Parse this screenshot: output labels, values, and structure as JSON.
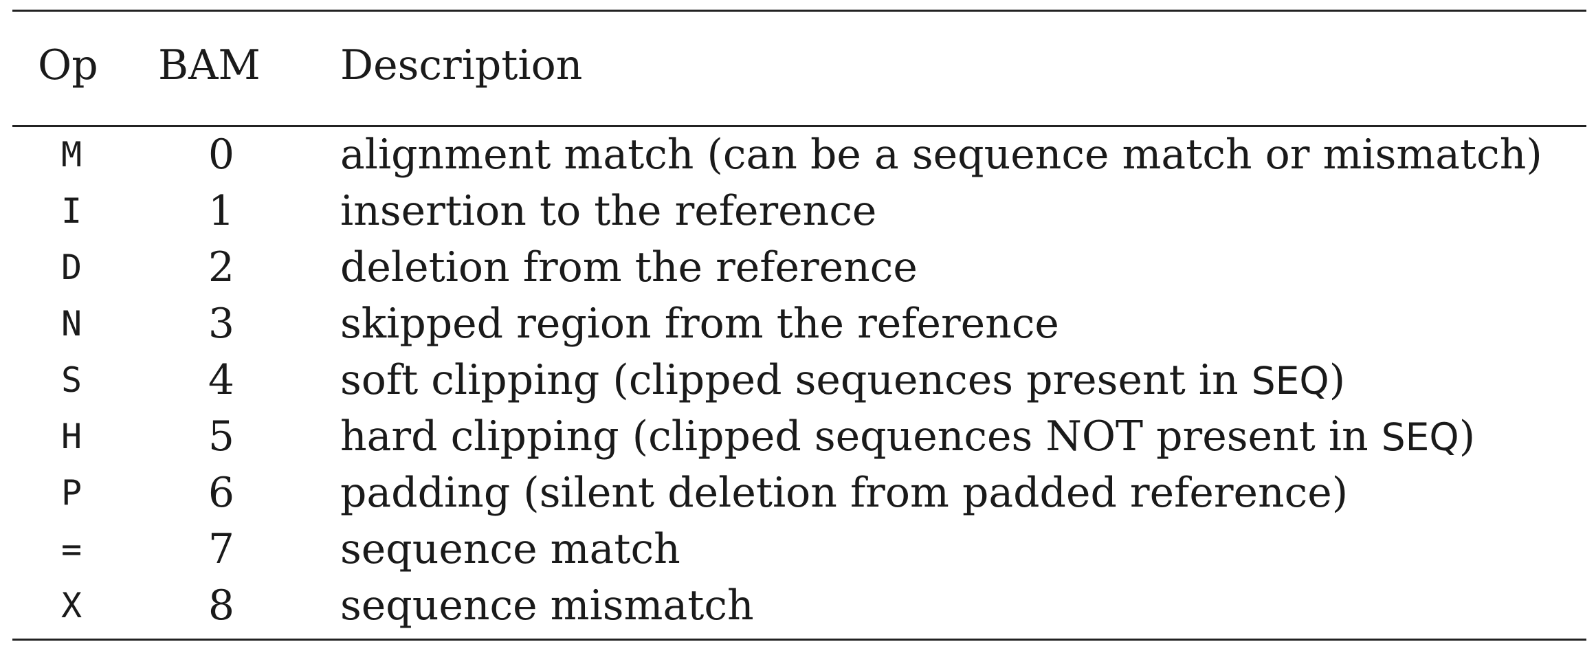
{
  "table": {
    "headers": {
      "op": "Op",
      "bam": "BAM",
      "description": "Description"
    },
    "rows": [
      {
        "op": "M",
        "bam": "0",
        "desc": "alignment match (can be a sequence match or mismatch)"
      },
      {
        "op": "I",
        "bam": "1",
        "desc": "insertion to the reference"
      },
      {
        "op": "D",
        "bam": "2",
        "desc": "deletion from the reference"
      },
      {
        "op": "N",
        "bam": "3",
        "desc": "skipped region from the reference"
      },
      {
        "op": "S",
        "bam": "4",
        "desc_pre": "soft clipping (clipped sequences present in ",
        "desc_code": "SEQ",
        "desc_post": ")"
      },
      {
        "op": "H",
        "bam": "5",
        "desc_pre": "hard clipping (clipped sequences NOT present in ",
        "desc_code": "SEQ",
        "desc_post": ")"
      },
      {
        "op": "P",
        "bam": "6",
        "desc": "padding (silent deletion from padded reference)"
      },
      {
        "op": "=",
        "bam": "7",
        "desc": "sequence match"
      },
      {
        "op": "X",
        "bam": "8",
        "desc": "sequence mismatch"
      }
    ]
  }
}
